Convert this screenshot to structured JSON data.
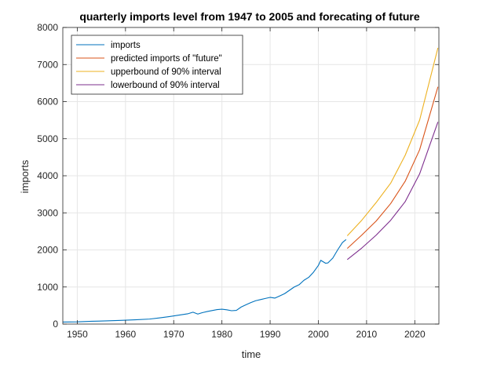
{
  "chart_data": {
    "type": "line",
    "title": "quarterly imports level from 1947 to 2005 and forecating of future",
    "xlabel": "time",
    "ylabel": "imports",
    "xlim": [
      1947,
      2025
    ],
    "ylim": [
      0,
      8000
    ],
    "xticks": [
      1950,
      1960,
      1970,
      1980,
      1990,
      2000,
      2010,
      2020
    ],
    "yticks": [
      0,
      1000,
      2000,
      3000,
      4000,
      5000,
      6000,
      7000,
      8000
    ],
    "grid": true,
    "box": true,
    "legend_position": "top-left",
    "series": [
      {
        "name": "imports",
        "color": "#0072BD",
        "points": [
          [
            1947,
            55
          ],
          [
            1950,
            60
          ],
          [
            1953,
            75
          ],
          [
            1956,
            85
          ],
          [
            1959,
            100
          ],
          [
            1962,
            115
          ],
          [
            1965,
            135
          ],
          [
            1967,
            165
          ],
          [
            1969,
            200
          ],
          [
            1971,
            240
          ],
          [
            1973,
            280
          ],
          [
            1974,
            320
          ],
          [
            1975,
            270
          ],
          [
            1976,
            310
          ],
          [
            1977,
            340
          ],
          [
            1979,
            390
          ],
          [
            1980,
            400
          ],
          [
            1981,
            385
          ],
          [
            1982,
            360
          ],
          [
            1983,
            370
          ],
          [
            1984,
            460
          ],
          [
            1985,
            520
          ],
          [
            1986,
            580
          ],
          [
            1987,
            630
          ],
          [
            1988,
            660
          ],
          [
            1989,
            690
          ],
          [
            1990,
            720
          ],
          [
            1991,
            700
          ],
          [
            1992,
            760
          ],
          [
            1993,
            820
          ],
          [
            1994,
            910
          ],
          [
            1995,
            1000
          ],
          [
            1996,
            1060
          ],
          [
            1997,
            1180
          ],
          [
            1998,
            1260
          ],
          [
            1999,
            1400
          ],
          [
            2000,
            1580
          ],
          [
            2000.5,
            1720
          ],
          [
            2001,
            1680
          ],
          [
            2001.5,
            1640
          ],
          [
            2002,
            1650
          ],
          [
            2003,
            1780
          ],
          [
            2004,
            2000
          ],
          [
            2005,
            2200
          ],
          [
            2005.75,
            2280
          ]
        ]
      },
      {
        "name": "predicted imports of \"future\"",
        "color": "#D95319",
        "points": [
          [
            2006,
            2040
          ],
          [
            2009,
            2400
          ],
          [
            2012,
            2780
          ],
          [
            2015,
            3250
          ],
          [
            2018,
            3850
          ],
          [
            2021,
            4700
          ],
          [
            2024.8,
            6400
          ]
        ]
      },
      {
        "name": "upperbound of 90% interval",
        "color": "#EDB120",
        "points": [
          [
            2006,
            2380
          ],
          [
            2009,
            2800
          ],
          [
            2012,
            3280
          ],
          [
            2015,
            3800
          ],
          [
            2018,
            4550
          ],
          [
            2021,
            5500
          ],
          [
            2024.8,
            7450
          ]
        ]
      },
      {
        "name": "lowerbound of 90% interval",
        "color": "#7E2F8E",
        "points": [
          [
            2006,
            1740
          ],
          [
            2009,
            2050
          ],
          [
            2012,
            2400
          ],
          [
            2015,
            2800
          ],
          [
            2018,
            3300
          ],
          [
            2021,
            4050
          ],
          [
            2024.8,
            5450
          ]
        ]
      }
    ]
  }
}
